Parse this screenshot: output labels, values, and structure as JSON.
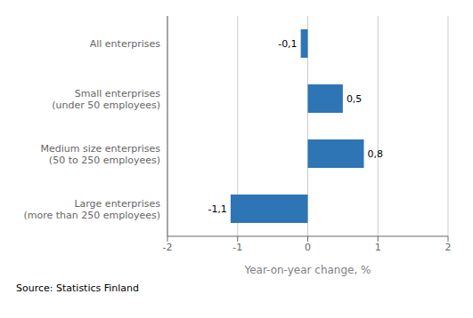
{
  "chart_data": {
    "type": "bar",
    "orientation": "horizontal",
    "categories": [
      "Large enterprises\n(more than 250 employees)",
      "Medium size enterprises\n(50 to 250 employees)",
      "Small enterprises\n(under 50 employees)",
      "All enterprises"
    ],
    "values": [
      -1.1,
      0.8,
      0.5,
      -0.1
    ],
    "value_labels": [
      "-1,1",
      "0,8",
      "0,5",
      "-0,1"
    ],
    "data_labels": true,
    "color": "#2E75B6",
    "xlabel": "Year-on-year change, %",
    "xlim": [
      -2,
      2
    ],
    "xticks": [
      -2,
      -1,
      0,
      1,
      2
    ],
    "grid": true,
    "annotation": "Source: Statistics Finland"
  }
}
